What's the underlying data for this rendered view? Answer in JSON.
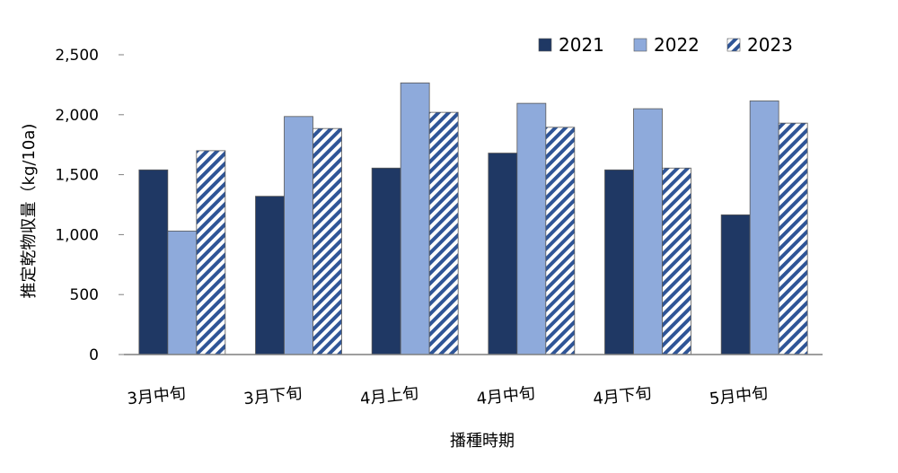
{
  "chart_data": {
    "type": "bar",
    "xlabel": "播種時期",
    "ylabel": "推定乾物収量（kg/10a)",
    "ylim": [
      0,
      2500
    ],
    "yticks": [
      0,
      500,
      1000,
      1500,
      2000,
      2500
    ],
    "ytick_labels": [
      "0",
      "500",
      "1,000",
      "1,500",
      "2,000",
      "2,500"
    ],
    "grid": false,
    "legend_position": "top-right",
    "categories": [
      "3月中旬",
      "3月下旬",
      "4月上旬",
      "4月中旬",
      "4月下旬",
      "5月中旬"
    ],
    "series": [
      {
        "name": "2021",
        "color": "#1f3864",
        "pattern": "solid",
        "values": [
          1540,
          1320,
          1555,
          1680,
          1540,
          1165
        ]
      },
      {
        "name": "2022",
        "color": "#8eaadb",
        "pattern": "solid",
        "values": [
          1030,
          1985,
          2265,
          2095,
          2050,
          2115
        ]
      },
      {
        "name": "2023",
        "color": "#2f5597",
        "pattern": "diagonal-hatch",
        "values": [
          1700,
          1885,
          2020,
          1895,
          1555,
          1930
        ]
      }
    ]
  }
}
